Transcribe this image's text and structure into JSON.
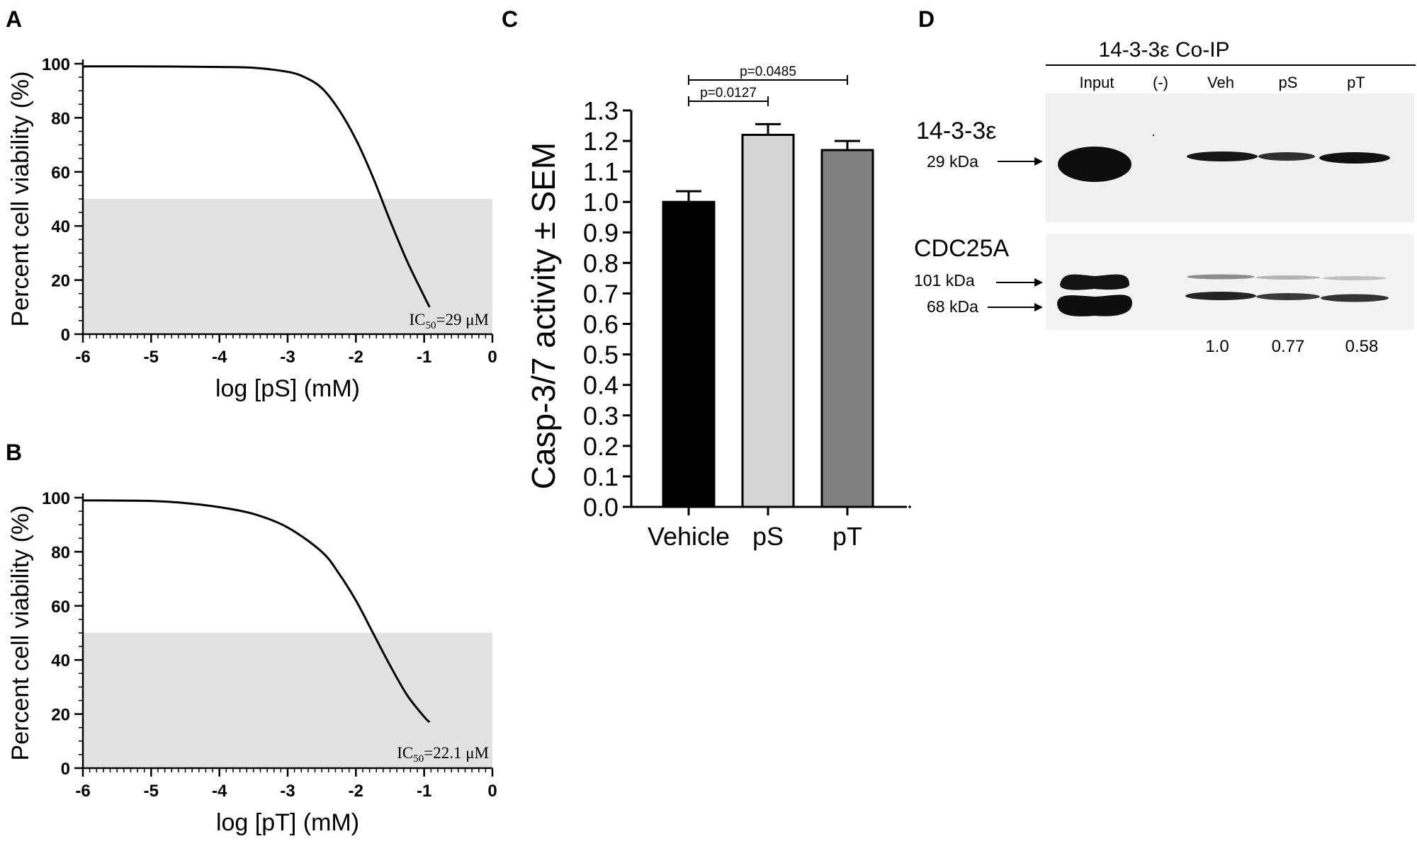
{
  "panels": {
    "a": {
      "label": "A"
    },
    "b": {
      "label": "B"
    },
    "c": {
      "label": "C"
    },
    "d": {
      "label": "D"
    }
  },
  "chart_data": [
    {
      "id": "A",
      "type": "line",
      "xlabel": "log [pS] (mM)",
      "ylabel": "Percent cell viability (%)",
      "xlim": [
        -6,
        0
      ],
      "ylim": [
        0,
        100
      ],
      "xticks": [
        "-6",
        "-5",
        "-4",
        "-3",
        "-2",
        "-1",
        "0"
      ],
      "yticks": [
        "0",
        "20",
        "40",
        "60",
        "80",
        "100"
      ],
      "shaded_band_y": [
        0,
        50
      ],
      "annotation": {
        "prefix": "IC",
        "sub": "50",
        "suffix": "=29 μM"
      },
      "series": [
        {
          "x": [
            -6.0,
            -5.0,
            -4.0,
            -3.5,
            -3.0,
            -2.75,
            -2.5,
            -2.25,
            -2.0,
            -1.75,
            -1.5,
            -1.25,
            -1.0,
            -0.92
          ],
          "y": [
            99.0,
            99.0,
            98.8,
            98.5,
            97.0,
            95.0,
            91.0,
            83.0,
            72.0,
            58.0,
            42.0,
            27.0,
            14.0,
            10.0
          ]
        }
      ]
    },
    {
      "id": "B",
      "type": "line",
      "xlabel": "log [pT] (mM)",
      "ylabel": "Percent cell viability (%)",
      "xlim": [
        -6,
        0
      ],
      "ylim": [
        0,
        100
      ],
      "xticks": [
        "-6",
        "-5",
        "-4",
        "-3",
        "-2",
        "-1",
        "0"
      ],
      "yticks": [
        "0",
        "20",
        "40",
        "60",
        "80",
        "100"
      ],
      "shaded_band_y": [
        0,
        50
      ],
      "annotation": {
        "prefix": "IC",
        "sub": "50",
        "suffix": "=22.1 μM"
      },
      "series": [
        {
          "x": [
            -6.0,
            -5.0,
            -4.5,
            -4.0,
            -3.5,
            -3.0,
            -2.5,
            -2.25,
            -2.0,
            -1.75,
            -1.5,
            -1.25,
            -1.0,
            -0.92
          ],
          "y": [
            99.0,
            98.8,
            98.0,
            96.5,
            94.0,
            89.0,
            80.0,
            72.0,
            62.0,
            50.0,
            38.0,
            27.0,
            19.0,
            17.0
          ]
        }
      ]
    },
    {
      "id": "C",
      "type": "bar",
      "categories": [
        "Vehicle",
        "pS",
        "pT"
      ],
      "values": [
        1.0,
        1.22,
        1.17
      ],
      "errors": [
        0.035,
        0.035,
        0.03
      ],
      "colors": [
        "#000000",
        "#d4d4d4",
        "#808080"
      ],
      "ylabel": "Casp-3/7 activity ± SEM",
      "ylim": [
        0,
        1.3
      ],
      "yticks": [
        "0.0",
        "0.1",
        "0.2",
        "0.3",
        "0.4",
        "0.5",
        "0.6",
        "0.7",
        "0.8",
        "0.9",
        "1.0",
        "1.1",
        "1.2",
        "1.3"
      ],
      "comparisons": [
        {
          "from": "Vehicle",
          "to": "pS",
          "label": "p=0.0127"
        },
        {
          "from": "Vehicle",
          "to": "pT",
          "label": "p=0.0485"
        }
      ]
    }
  ],
  "blot": {
    "title": "14-3-3ε Co-IP",
    "lanes": [
      "Input",
      "(-)",
      "Veh",
      "pS",
      "pT"
    ],
    "upper": {
      "protein": "14-3-3ε",
      "marker": "29 kDa"
    },
    "lower": {
      "protein": "CDC25A",
      "markers": [
        "101 kDa",
        "68 kDa"
      ]
    },
    "ratios": [
      "1.0",
      "0.77",
      "0.58"
    ]
  }
}
